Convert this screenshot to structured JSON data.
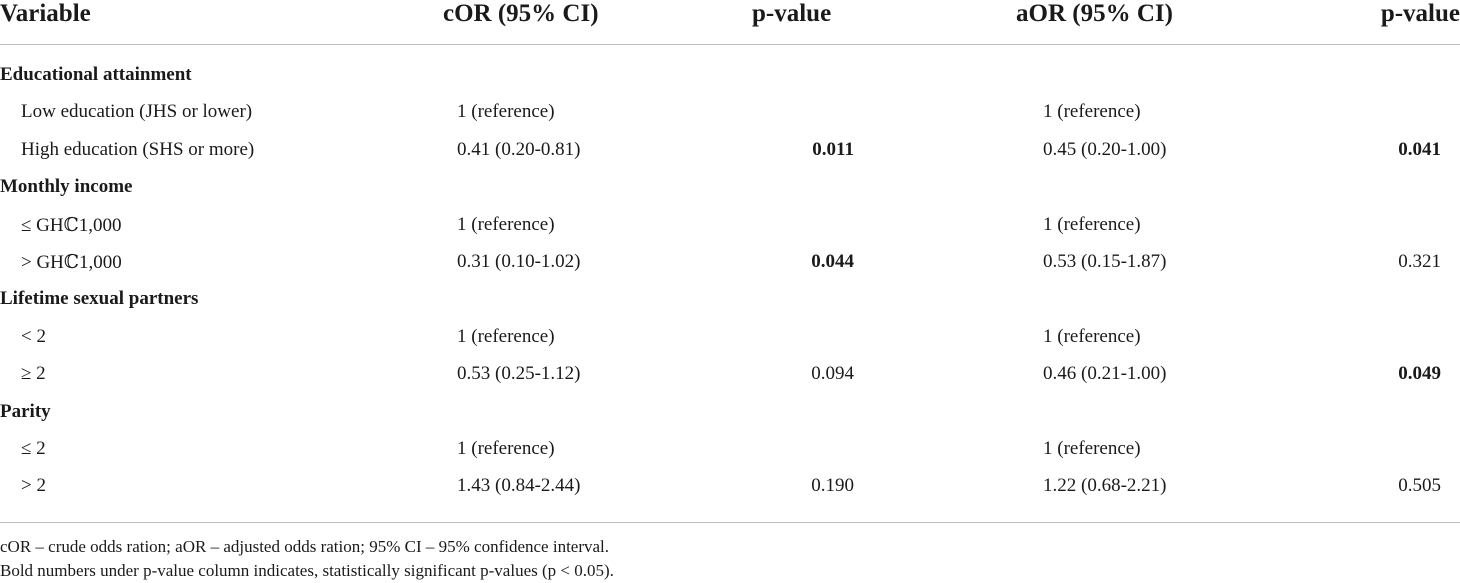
{
  "table": {
    "headers": {
      "variable": "Variable",
      "cor": "cOR (95% CI)",
      "p1": "p-value",
      "aor": "aOR (95% CI)",
      "p2": "p-value"
    },
    "rows": [
      {
        "group": "Educational attainment"
      },
      {
        "label": "Low education (JHS or lower)",
        "cor": "1 (reference)",
        "p1": "",
        "p1_bold": false,
        "aor": "1 (reference)",
        "p2": "",
        "p2_bold": false
      },
      {
        "label": "High education (SHS or more)",
        "cor": "0.41 (0.20-0.81)",
        "p1": "0.011",
        "p1_bold": true,
        "aor": "0.45 (0.20-1.00)",
        "p2": "0.041",
        "p2_bold": true
      },
      {
        "group": "Monthly income"
      },
      {
        "label": "≤ GHℂ1,000",
        "cor": "1 (reference)",
        "p1": "",
        "p1_bold": false,
        "aor": "1 (reference)",
        "p2": "",
        "p2_bold": false
      },
      {
        "label": "> GHℂ1,000",
        "cor": "0.31 (0.10-1.02)",
        "p1": "0.044",
        "p1_bold": true,
        "aor": "0.53 (0.15-1.87)",
        "p2": "0.321",
        "p2_bold": false
      },
      {
        "group": "Lifetime sexual partners"
      },
      {
        "label": "< 2",
        "cor": "1 (reference)",
        "p1": "",
        "p1_bold": false,
        "aor": "1 (reference)",
        "p2": "",
        "p2_bold": false
      },
      {
        "label": "≥ 2",
        "cor": "0.53 (0.25-1.12)",
        "p1": "0.094",
        "p1_bold": false,
        "aor": "0.46 (0.21-1.00)",
        "p2": "0.049",
        "p2_bold": true
      },
      {
        "group": "Parity"
      },
      {
        "label": "≤ 2",
        "cor": "1 (reference)",
        "p1": "",
        "p1_bold": false,
        "aor": "1 (reference)",
        "p2": "",
        "p2_bold": false
      },
      {
        "label": "> 2",
        "cor": "1.43 (0.84-2.44)",
        "p1": "0.190",
        "p1_bold": false,
        "aor": "1.22 (0.68-2.21)",
        "p2": "0.505",
        "p2_bold": false
      }
    ]
  },
  "notes": [
    "cOR – crude odds ration; aOR – adjusted odds ration; 95% CI – 95% confidence interval.",
    "Bold numbers under p-value column indicates, statistically significant p-values (p < 0.05)."
  ]
}
